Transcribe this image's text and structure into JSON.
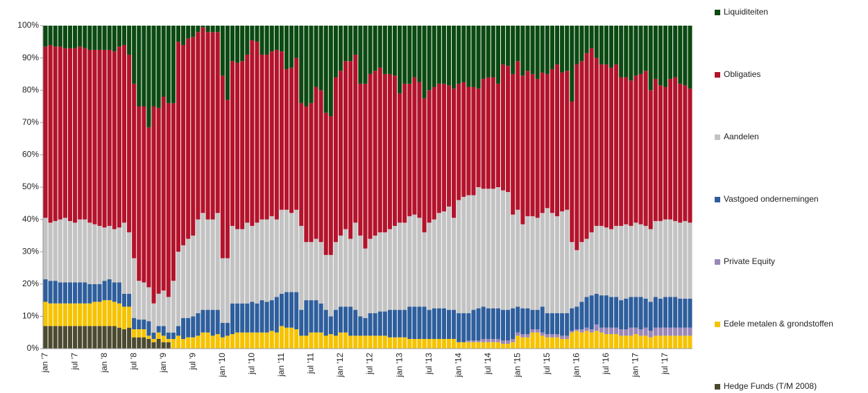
{
  "chart_data": {
    "type": "bar",
    "stacked": true,
    "categories": [
      "jan '7",
      null,
      null,
      null,
      null,
      null,
      "jul '7",
      null,
      null,
      null,
      null,
      null,
      "jan '8",
      null,
      null,
      null,
      null,
      null,
      "jul '8",
      null,
      null,
      null,
      null,
      null,
      "jan '9",
      null,
      null,
      null,
      null,
      null,
      "jul '9",
      null,
      null,
      null,
      null,
      null,
      "jan '10",
      null,
      null,
      null,
      null,
      null,
      "jul '10",
      null,
      null,
      null,
      null,
      null,
      "jan '11",
      null,
      null,
      null,
      null,
      null,
      "jul '11",
      null,
      null,
      null,
      null,
      null,
      "jan '12",
      null,
      null,
      null,
      null,
      null,
      "jul '12",
      null,
      null,
      null,
      null,
      null,
      "jan '13",
      null,
      null,
      null,
      null,
      null,
      "jul '13",
      null,
      null,
      null,
      null,
      null,
      "jan '14",
      null,
      null,
      null,
      null,
      null,
      "jul '14",
      null,
      null,
      null,
      null,
      null,
      "jan '15",
      null,
      null,
      null,
      null,
      null,
      "jul '15",
      null,
      null,
      null,
      null,
      null,
      "jan '16",
      null,
      null,
      null,
      null,
      null,
      "jul '16",
      null,
      null,
      null,
      null,
      null,
      "jan '17",
      null,
      null,
      null,
      null,
      null,
      "jul '17",
      null,
      null,
      null,
      null,
      null
    ],
    "series": [
      {
        "name": "Liquiditeiten",
        "color": "#0b4a12",
        "values": [
          6.5,
          6,
          6.5,
          6.5,
          7,
          7,
          7,
          6.5,
          7,
          7.5,
          7.5,
          7.5,
          7.5,
          7.5,
          8,
          6.5,
          6,
          9,
          18,
          25,
          25,
          31.5,
          25,
          25.5,
          22,
          24,
          24,
          5,
          6,
          4,
          3.5,
          2,
          0.5,
          2,
          2,
          2,
          15.5,
          23,
          11,
          11.5,
          11,
          9,
          4.5,
          5,
          9,
          9,
          8,
          7.5,
          8,
          13.5,
          13,
          10,
          24,
          25,
          24,
          19,
          20,
          27,
          28,
          16,
          14,
          11,
          11,
          9,
          18,
          18,
          15,
          14,
          13,
          15,
          15,
          15.5,
          21,
          18,
          18,
          16,
          17.5,
          22.5,
          20,
          19,
          18,
          18,
          18.5,
          19.5,
          18,
          17.5,
          19,
          19,
          19.5,
          16.5,
          16,
          16,
          18,
          12,
          12.5,
          15,
          11,
          15.5,
          14,
          15,
          16.5,
          14.5,
          15,
          13.5,
          12,
          14.5,
          14,
          23.5,
          12,
          11,
          8.5,
          7,
          10,
          12,
          12,
          13,
          12,
          16,
          16,
          17,
          15.5,
          15,
          14,
          20,
          16.5,
          18.5,
          19,
          16.5,
          16,
          18,
          18.5,
          19.5
        ]
      },
      {
        "name": "Obligaties",
        "color": "#b3132b",
        "values": [
          53,
          55,
          54,
          53.5,
          52.5,
          53.5,
          54,
          53.5,
          53,
          53.5,
          54,
          54.5,
          55,
          54.5,
          55,
          56,
          55,
          55,
          54,
          54,
          54.5,
          49.5,
          61,
          57.5,
          60,
          60,
          55,
          65,
          62,
          62,
          61.5,
          58,
          57.5,
          58,
          58,
          56,
          56.5,
          49,
          51,
          51.5,
          52,
          52,
          57.5,
          56,
          51,
          51,
          51,
          52.5,
          49,
          43.5,
          45,
          47,
          38,
          42,
          43,
          47,
          47,
          44,
          43,
          51,
          51,
          52,
          55,
          52,
          47,
          51,
          51,
          51,
          51,
          49,
          48,
          46.5,
          40,
          43,
          41,
          42.5,
          42,
          41.5,
          41,
          41,
          40,
          39.5,
          37.5,
          40,
          36,
          35.5,
          33.5,
          33.5,
          30.5,
          34,
          34.5,
          34.5,
          32,
          39,
          39,
          43.5,
          46,
          46,
          45,
          44,
          43,
          43.5,
          41.5,
          44.5,
          47,
          43,
          43,
          43.5,
          57.5,
          56,
          57.5,
          57,
          52,
          50,
          50.5,
          50,
          50,
          46,
          45.5,
          45,
          45.5,
          46.5,
          48,
          43,
          44,
          42,
          41,
          43.5,
          44.5,
          43,
          42,
          41.5
        ]
      },
      {
        "name": "Aandelen",
        "color": "#c3c3c3",
        "values": [
          19,
          18,
          18.5,
          19.5,
          20,
          19,
          18.5,
          19.5,
          19.5,
          19,
          18.5,
          18,
          16.5,
          16.5,
          16.5,
          17,
          22,
          19,
          18.5,
          12,
          11.5,
          10.5,
          9,
          10,
          11,
          11,
          16,
          23,
          22.5,
          24.5,
          25,
          29,
          30,
          28,
          28,
          30,
          20,
          20,
          24,
          23,
          23,
          25,
          23.5,
          25,
          25,
          25.5,
          26,
          24,
          26,
          25.5,
          24.5,
          25.5,
          26,
          18,
          18,
          19,
          19,
          17,
          19,
          21,
          22,
          24,
          21,
          27,
          25,
          21.5,
          23,
          24,
          24.5,
          24.5,
          25,
          26,
          27,
          27,
          28,
          28.5,
          27.5,
          23,
          27,
          27.5,
          29.5,
          30,
          32,
          28.5,
          35,
          36,
          36.5,
          35.5,
          37.5,
          36.5,
          37,
          37,
          37.5,
          37,
          36.5,
          29,
          30,
          26,
          28.5,
          29,
          28.5,
          29,
          32.5,
          31,
          30,
          31.5,
          32,
          20.5,
          17.5,
          18.5,
          18,
          19.5,
          21,
          21.5,
          21,
          21,
          22,
          23,
          23,
          22,
          23,
          22.5,
          22.5,
          22.5,
          23.5,
          24,
          24,
          24,
          23.5,
          23.5,
          24,
          23.5
        ]
      },
      {
        "name": "Vastgoed ondernemingen",
        "color": "#2e5e9c",
        "values": [
          7,
          7,
          7,
          6.5,
          6.5,
          6.5,
          6.5,
          6.5,
          6.5,
          6,
          5.5,
          5.5,
          6,
          6.5,
          6,
          6.5,
          4,
          4,
          3.5,
          3,
          3,
          4.5,
          2,
          2,
          3,
          2,
          2,
          3,
          6.5,
          6,
          6.5,
          7,
          7,
          7,
          8,
          7.5,
          4.5,
          4,
          9.5,
          9,
          9,
          9,
          9.5,
          9,
          10,
          9.5,
          9.5,
          11,
          10,
          11,
          11,
          11.5,
          8,
          11,
          10,
          10,
          9,
          8,
          5.5,
          8,
          8,
          8,
          9,
          8,
          6,
          5.5,
          7,
          7,
          7.5,
          7.5,
          8.5,
          8.5,
          8.5,
          8.5,
          10,
          10,
          10,
          10,
          9,
          9.5,
          9.5,
          9.5,
          9,
          9,
          9,
          9,
          8.5,
          9.5,
          10,
          10,
          9.5,
          9.5,
          9.5,
          9.5,
          9.5,
          9.5,
          8,
          8,
          8,
          6,
          6,
          8,
          6.5,
          6.5,
          6.5,
          7,
          7,
          7,
          7,
          8.5,
          9.5,
          10.5,
          9.5,
          10,
          10,
          9.5,
          9.5,
          9,
          9.5,
          9.5,
          9.5,
          10,
          9,
          9,
          9.5,
          9,
          9.5,
          9.5,
          9.5,
          9,
          9,
          9
        ]
      },
      {
        "name": "Private Equity",
        "color": "#9a87b8",
        "values": [
          0,
          0,
          0,
          0,
          0,
          0,
          0,
          0,
          0,
          0,
          0,
          0,
          0,
          0,
          0,
          0,
          0,
          0,
          0,
          0,
          0,
          0,
          0,
          0,
          0,
          0,
          0,
          0,
          0,
          0,
          0,
          0,
          0,
          0,
          0,
          0,
          0,
          0,
          0,
          0,
          0,
          0,
          0,
          0,
          0,
          0,
          0,
          0,
          0,
          0,
          0,
          0,
          0,
          0,
          0,
          0,
          0,
          0,
          0,
          0,
          0,
          0,
          0,
          0,
          0,
          0,
          0,
          0,
          0,
          0,
          0,
          0,
          0,
          0,
          0,
          0,
          0,
          0,
          0,
          0,
          0,
          0,
          0,
          0,
          0,
          0,
          0.5,
          0.5,
          0.5,
          1,
          1,
          1,
          1,
          1,
          1,
          1,
          1,
          1,
          1,
          1,
          1,
          1,
          1,
          1,
          1,
          1,
          1,
          0.5,
          0.5,
          1,
          1,
          1,
          2,
          1.5,
          2,
          2,
          2,
          2,
          2,
          2.5,
          2,
          2,
          2.5,
          2,
          2.5,
          2.5,
          2.5,
          2.5,
          2.5,
          2.5,
          2.5,
          2.5
        ]
      },
      {
        "name": "Edele metalen & grondstoffen",
        "color": "#f6c300",
        "values": [
          7.5,
          7,
          7,
          7,
          7,
          7,
          7,
          7,
          7,
          7,
          7.5,
          7.5,
          8,
          8,
          7.5,
          7.5,
          7,
          6.5,
          2.5,
          2.5,
          2.5,
          1,
          1,
          2,
          2,
          1,
          3,
          4,
          3,
          3.5,
          3.5,
          4,
          5,
          5,
          4,
          4.5,
          3.5,
          4,
          4.5,
          5,
          5,
          5,
          5,
          5,
          5,
          5,
          5.5,
          5,
          7,
          6.5,
          6.5,
          6,
          4,
          4,
          5,
          5,
          5,
          4,
          4.5,
          4,
          5,
          5,
          4,
          4,
          4,
          4,
          4,
          4,
          4,
          4,
          3.5,
          3.5,
          3.5,
          3.5,
          3,
          3,
          3,
          3,
          3,
          3,
          3,
          3,
          3,
          3,
          2,
          2,
          2,
          2,
          2,
          2,
          2,
          2,
          2,
          1.5,
          1.5,
          2,
          4,
          3.5,
          3.5,
          5,
          5,
          4,
          3.5,
          3.5,
          3.5,
          3,
          3,
          5,
          5.5,
          5,
          5.5,
          5,
          5.5,
          5,
          4.5,
          4.5,
          4.5,
          4,
          4,
          4,
          4.5,
          4,
          4,
          3.5,
          4,
          4,
          4,
          4,
          4,
          4,
          4,
          4
        ]
      },
      {
        "name": "Hedge Funds (T/M 2008)",
        "color": "#4b4a30",
        "values": [
          7,
          7,
          7,
          7,
          7,
          7,
          7,
          7,
          7,
          7,
          7,
          7,
          7,
          7,
          7,
          6.5,
          6,
          6.5,
          3.5,
          3.5,
          3.5,
          3,
          2,
          3,
          2,
          2,
          0,
          0,
          0,
          0,
          0,
          0,
          0,
          0,
          0,
          0,
          0,
          0,
          0,
          0,
          0,
          0,
          0,
          0,
          0,
          0,
          0,
          0,
          0,
          0,
          0,
          0,
          0,
          0,
          0,
          0,
          0,
          0,
          0,
          0,
          0,
          0,
          0,
          0,
          0,
          0,
          0,
          0,
          0,
          0,
          0,
          0,
          0,
          0,
          0,
          0,
          0,
          0,
          0,
          0,
          0,
          0,
          0,
          0,
          0,
          0,
          0,
          0,
          0,
          0,
          0,
          0,
          0,
          0,
          0,
          0,
          0,
          0,
          0,
          0,
          0,
          0,
          0,
          0,
          0,
          0,
          0,
          0,
          0,
          0,
          0,
          0,
          0,
          0,
          0,
          0,
          0,
          0,
          0,
          0,
          0,
          0,
          0,
          0,
          0,
          0,
          0,
          0,
          0,
          0,
          0,
          0
        ]
      }
    ],
    "ylim": [
      0,
      100
    ],
    "yticks": [
      {
        "value": 0,
        "label": "0%"
      },
      {
        "value": 10,
        "label": "10%"
      },
      {
        "value": 20,
        "label": "20%"
      },
      {
        "value": 30,
        "label": "30%"
      },
      {
        "value": 40,
        "label": "40%"
      },
      {
        "value": 50,
        "label": "50%"
      },
      {
        "value": 60,
        "label": "60%"
      },
      {
        "value": 70,
        "label": "70%"
      },
      {
        "value": 80,
        "label": "80%"
      },
      {
        "value": 90,
        "label": "90%"
      },
      {
        "value": 100,
        "label": "100%"
      }
    ],
    "grid": false,
    "legend": "right"
  }
}
